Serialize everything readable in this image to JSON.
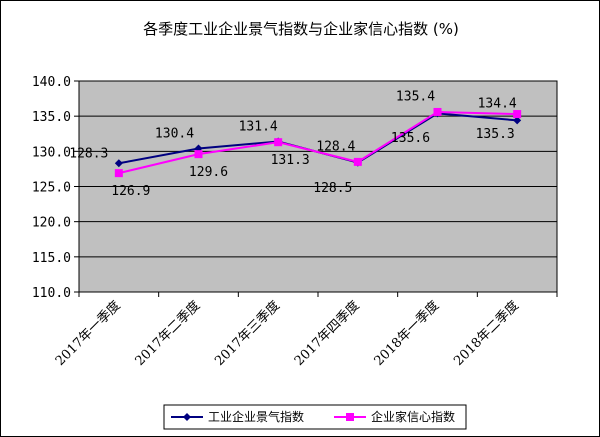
{
  "chart_data": {
    "type": "line",
    "title": "各季度工业企业景气指数与企业家信心指数 (%)",
    "categories": [
      "2017年一季度",
      "2017年二季度",
      "2017年三季度",
      "2017年四季度",
      "2018年一季度",
      "2018年二季度"
    ],
    "ylim": [
      110,
      140
    ],
    "yticks": [
      "110.0",
      "115.0",
      "120.0",
      "125.0",
      "130.0",
      "135.0",
      "140.0"
    ],
    "grid": true,
    "legend_position": "bottom",
    "plot_background": "#c0c0c0",
    "series": [
      {
        "name": "工业企业景气指数",
        "color": "#000080",
        "marker": "diamond",
        "values": [
          128.3,
          130.4,
          131.4,
          128.4,
          135.4,
          134.4
        ],
        "labels": [
          "128.3",
          "130.4",
          "131.4",
          "128.4",
          "135.4",
          "134.4"
        ]
      },
      {
        "name": "企业家信心指数",
        "color": "#ff00ff",
        "marker": "square",
        "values": [
          126.9,
          129.6,
          131.3,
          128.5,
          135.6,
          135.3
        ],
        "labels": [
          "126.9",
          "129.6",
          "131.3",
          "128.5",
          "135.6",
          "135.3"
        ]
      }
    ]
  }
}
